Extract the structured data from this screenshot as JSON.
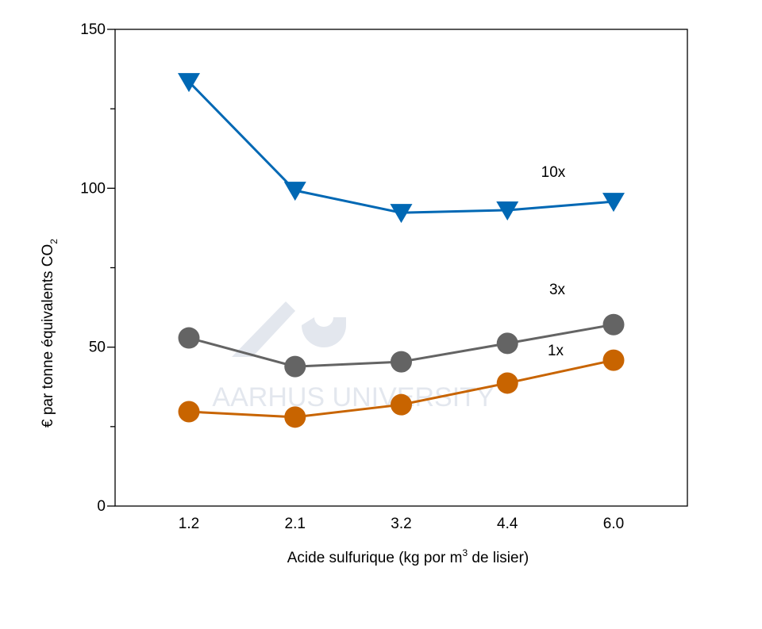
{
  "chart_data": {
    "type": "line",
    "categories": [
      "1.2",
      "2.1",
      "3.2",
      "4.4",
      "6.0"
    ],
    "xlabel": "Acide sulfurique (kg por m³ de lisier)",
    "xlabel_parts": {
      "pre": "Acide sulfurique (kg por m",
      "sup": "3",
      "post": " de lisier)"
    },
    "ylabel": "€ par tonne équivalents  CO₂",
    "ylabel_parts": {
      "pre": "€ par tonne équivalents  CO",
      "sub": "2"
    },
    "ylim": [
      0,
      150
    ],
    "yticks": [
      "0",
      "50",
      "100",
      "150"
    ],
    "yminor": [
      25,
      75,
      125
    ],
    "grid": false,
    "series": [
      {
        "name": "10x",
        "marker": "triangle-down",
        "color": "#0068b4",
        "values": [
          133.5,
          99.3,
          92.3,
          93.1,
          95.8
        ]
      },
      {
        "name": "3x",
        "marker": "circle",
        "color": "#646464",
        "values": [
          52.9,
          43.9,
          45.4,
          51.2,
          57.1
        ]
      },
      {
        "name": "1x",
        "marker": "circle",
        "color": "#c86400",
        "values": [
          29.7,
          28.0,
          31.9,
          38.7,
          45.9
        ]
      }
    ],
    "watermark": "AARHUS UNIVERSITY"
  }
}
